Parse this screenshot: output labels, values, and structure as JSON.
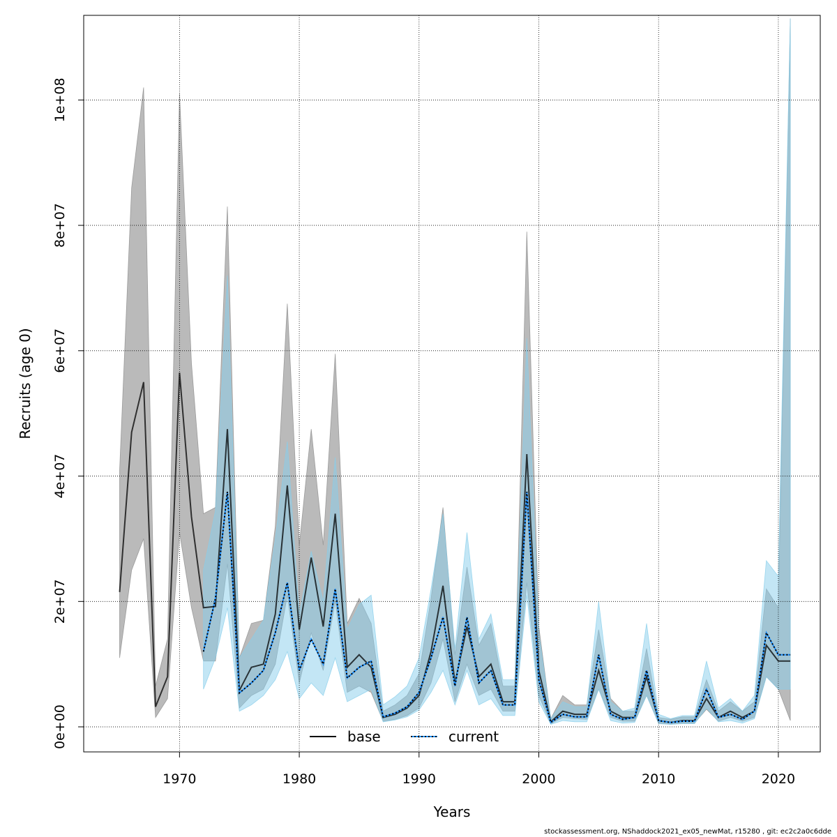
{
  "chart_data": {
    "type": "line",
    "xlabel": "Years",
    "ylabel": "Recruits (age 0)",
    "xlim": [
      1962,
      2023.5
    ],
    "ylim": [
      -4000000,
      113500000
    ],
    "x_ticks": [
      1970,
      1980,
      1990,
      2000,
      2010,
      2020
    ],
    "x_tick_labels": [
      "1970",
      "1980",
      "1990",
      "2000",
      "2010",
      "2020"
    ],
    "y_ticks": [
      0,
      20000000,
      40000000,
      60000000,
      80000000,
      100000000
    ],
    "y_tick_labels": [
      "0e+00",
      "2e+07",
      "4e+07",
      "6e+07",
      "8e+07",
      "1e+08"
    ],
    "grid": true,
    "legend_position": "bottom-center",
    "series": [
      {
        "name": "base",
        "line_style": "solid",
        "color": "#000000",
        "band_color": "#8c8c8c",
        "x": [
          1965,
          1966,
          1967,
          1968,
          1969,
          1970,
          1971,
          1972,
          1973,
          1974,
          1975,
          1976,
          1977,
          1978,
          1979,
          1980,
          1981,
          1982,
          1983,
          1984,
          1985,
          1986,
          1987,
          1988,
          1989,
          1990,
          1991,
          1992,
          1993,
          1994,
          1995,
          1996,
          1997,
          1998,
          1999,
          2000,
          2001,
          2002,
          2003,
          2004,
          2005,
          2006,
          2007,
          2008,
          2009,
          2010,
          2011,
          2012,
          2013,
          2014,
          2015,
          2016,
          2017,
          2018,
          2019,
          2020,
          2021
        ],
        "y": [
          21500000,
          47000000,
          55000000,
          3200000,
          8000000,
          56500000,
          33500000,
          19000000,
          19200000,
          47500000,
          5800000,
          9500000,
          10000000,
          18000000,
          38500000,
          15500000,
          27000000,
          16000000,
          34000000,
          9500000,
          11500000,
          9500000,
          1500000,
          2000000,
          3000000,
          5000000,
          12000000,
          22500000,
          7000000,
          16000000,
          8000000,
          10000000,
          4000000,
          4000000,
          43500000,
          9000000,
          800000,
          2500000,
          2000000,
          2000000,
          9000000,
          2500000,
          1500000,
          1500000,
          8000000,
          1000000,
          700000,
          1000000,
          1000000,
          4500000,
          1500000,
          2500000,
          1500000,
          2500000,
          13000000,
          10500000,
          10500000
        ],
        "lower": [
          11000000,
          25000000,
          30000000,
          1500000,
          4500000,
          31000000,
          19000000,
          10500000,
          10500000,
          26000000,
          3000000,
          5000000,
          6000000,
          10000000,
          21000000,
          7000000,
          15000000,
          9000000,
          20000000,
          5500000,
          6500000,
          5500000,
          900000,
          1200000,
          1800000,
          3000000,
          7000000,
          14000000,
          4000000,
          10000000,
          5000000,
          6000000,
          2500000,
          2500000,
          23000000,
          5000000,
          500000,
          1500000,
          1300000,
          1200000,
          6000000,
          1500000,
          900000,
          900000,
          5000000,
          600000,
          400000,
          600000,
          600000,
          2800000,
          900000,
          1500000,
          900000,
          1500000,
          8000000,
          6000000,
          1000000
        ],
        "upper": [
          41000000,
          86000000,
          102000000,
          6500000,
          14000000,
          101000000,
          58000000,
          34000000,
          35000000,
          83000000,
          11000000,
          16500000,
          17000000,
          32000000,
          67500000,
          29000000,
          47500000,
          29000000,
          59500000,
          16500000,
          20500000,
          16500000,
          2500000,
          3500000,
          5000000,
          8500000,
          20500000,
          35000000,
          11500000,
          25500000,
          13000000,
          16500000,
          6500000,
          6500000,
          79000000,
          16000000,
          1300000,
          5000000,
          3500000,
          3500000,
          15500000,
          4500000,
          2500000,
          2500000,
          12500000,
          1500000,
          1200000,
          1600000,
          1600000,
          7500000,
          2500000,
          4000000,
          2500000,
          4000000,
          22000000,
          19000000,
          113000000
        ]
      },
      {
        "name": "current",
        "line_style": "dotted",
        "color": "#000000",
        "dot_color": "#1e90ff",
        "band_color": "#87ceeb",
        "x": [
          1972,
          1973,
          1974,
          1975,
          1976,
          1977,
          1978,
          1979,
          1980,
          1981,
          1982,
          1983,
          1984,
          1985,
          1986,
          1987,
          1988,
          1989,
          1990,
          1991,
          1992,
          1993,
          1994,
          1995,
          1996,
          1997,
          1998,
          1999,
          2000,
          2001,
          2002,
          2003,
          2004,
          2005,
          2006,
          2007,
          2008,
          2009,
          2010,
          2011,
          2012,
          2013,
          2014,
          2015,
          2016,
          2017,
          2018,
          2019,
          2020,
          2021
        ],
        "y": [
          12000000,
          20500000,
          37500000,
          5400000,
          7000000,
          9000000,
          15000000,
          23000000,
          9000000,
          14000000,
          10000000,
          22000000,
          7800000,
          9500000,
          10500000,
          1600000,
          2200000,
          3200000,
          5500000,
          11000000,
          17500000,
          6500000,
          17500000,
          7000000,
          9000000,
          3500000,
          3500000,
          37500000,
          7500000,
          700000,
          2000000,
          1600000,
          1600000,
          11500000,
          2000000,
          1200000,
          1500000,
          9000000,
          1000000,
          700000,
          900000,
          900000,
          6000000,
          1500000,
          2000000,
          1200000,
          2500000,
          15000000,
          11500000,
          11500000
        ],
        "lower": [
          6000000,
          11000000,
          19000000,
          2500000,
          3500000,
          5000000,
          7500000,
          12000000,
          4500000,
          7000000,
          5000000,
          11000000,
          4000000,
          5000000,
          6000000,
          800000,
          1100000,
          1600000,
          2700000,
          5500000,
          9000000,
          3500000,
          9000000,
          3500000,
          4500000,
          1800000,
          1800000,
          21000000,
          4000000,
          400000,
          1000000,
          800000,
          800000,
          6000000,
          1000000,
          600000,
          700000,
          5000000,
          500000,
          400000,
          500000,
          500000,
          3000000,
          800000,
          1000000,
          600000,
          1300000,
          8000000,
          6000000,
          6000000
        ],
        "upper": [
          25000000,
          34500000,
          72000000,
          11000000,
          14000000,
          17000000,
          30000000,
          45500000,
          18000000,
          28000000,
          20000000,
          43000000,
          15500000,
          19500000,
          21000000,
          3500000,
          4800000,
          6500000,
          11000000,
          22000000,
          34000000,
          12500000,
          31000000,
          14000000,
          18000000,
          7500000,
          7500000,
          62000000,
          15000000,
          1300000,
          4000000,
          3200000,
          3200000,
          20000000,
          4000000,
          2500000,
          3000000,
          16500000,
          2000000,
          1300000,
          1800000,
          1800000,
          10500000,
          3000000,
          4500000,
          2500000,
          5000000,
          26500000,
          24000000,
          113000000
        ]
      }
    ],
    "footer_note": "stockassessment.org, NShaddock2021_ex05_newMat, r15280 , git: ec2c2a0c6dde"
  }
}
